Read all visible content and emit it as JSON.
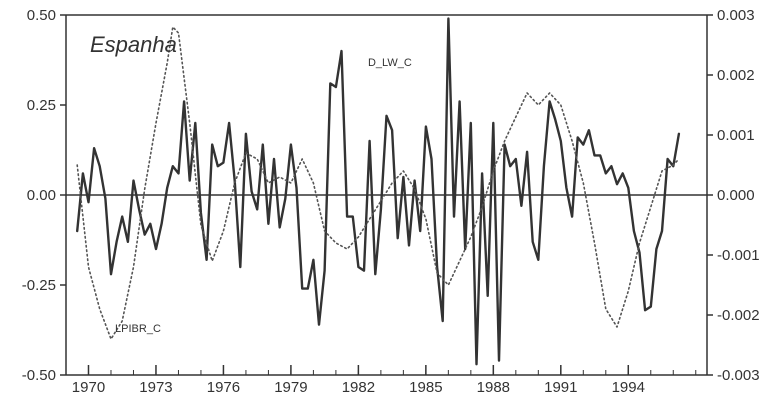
{
  "chart_data": {
    "type": "line",
    "title": "Espanha",
    "xlim": [
      1969.0,
      1997.5
    ],
    "ylim_left": [
      -0.5,
      0.5
    ],
    "ylim_right": [
      -0.003,
      0.003
    ],
    "x_ticks": [
      1970,
      1973,
      1976,
      1979,
      1982,
      1985,
      1988,
      1991,
      1994
    ],
    "x_tick_labels": [
      "1970",
      "1973",
      "1976",
      "1979",
      "1982",
      "1985",
      "1988",
      "1991",
      "1994"
    ],
    "y_left_ticks": [
      0.5,
      0.25,
      0.0,
      -0.25,
      -0.5
    ],
    "y_left_tick_labels": [
      "0.50",
      "0.25",
      "0.00",
      "-0.25",
      "-0.50"
    ],
    "y_right_ticks": [
      0.003,
      0.002,
      0.001,
      0.0,
      -0.001,
      -0.002,
      -0.003
    ],
    "y_right_tick_labels": [
      "0.003",
      "0.002",
      "0.001",
      "0.000",
      "-0.001",
      "-0.002",
      "-0.003"
    ],
    "zero_line": true,
    "grid": false,
    "series": [
      {
        "name": "D_LW_C",
        "axis": "left",
        "style": "solid",
        "color": "#333333",
        "x": [
          1969.5,
          1969.75,
          1970.0,
          1970.25,
          1970.5,
          1970.75,
          1971.0,
          1971.25,
          1971.5,
          1971.75,
          1972.0,
          1972.25,
          1972.5,
          1972.75,
          1973.0,
          1973.25,
          1973.5,
          1973.75,
          1974.0,
          1974.25,
          1974.5,
          1974.75,
          1975.0,
          1975.25,
          1975.5,
          1975.75,
          1976.0,
          1976.25,
          1976.5,
          1976.75,
          1977.0,
          1977.25,
          1977.5,
          1977.75,
          1978.0,
          1978.25,
          1978.5,
          1978.75,
          1979.0,
          1979.25,
          1979.5,
          1979.75,
          1980.0,
          1980.25,
          1980.5,
          1980.75,
          1981.0,
          1981.25,
          1981.5,
          1981.75,
          1982.0,
          1982.25,
          1982.5,
          1982.75,
          1983.0,
          1983.25,
          1983.5,
          1983.75,
          1984.0,
          1984.25,
          1984.5,
          1984.75,
          1985.0,
          1985.25,
          1985.5,
          1985.75,
          1986.0,
          1986.25,
          1986.5,
          1986.75,
          1987.0,
          1987.25,
          1987.5,
          1987.75,
          1988.0,
          1988.25,
          1988.5,
          1988.75,
          1989.0,
          1989.25,
          1989.5,
          1989.75,
          1990.0,
          1990.25,
          1990.5,
          1990.75,
          1991.0,
          1991.25,
          1991.5,
          1991.75,
          1992.0,
          1992.25,
          1992.5,
          1992.75,
          1993.0,
          1993.25,
          1993.5,
          1993.75,
          1994.0,
          1994.25,
          1994.5,
          1994.75,
          1995.0,
          1995.25,
          1995.5,
          1995.75,
          1996.0,
          1996.25
        ],
        "y": [
          -0.1,
          0.06,
          -0.02,
          0.13,
          0.08,
          -0.01,
          -0.22,
          -0.13,
          -0.06,
          -0.13,
          0.04,
          -0.04,
          -0.11,
          -0.08,
          -0.15,
          -0.08,
          0.02,
          0.08,
          0.06,
          0.26,
          0.04,
          0.2,
          -0.05,
          -0.18,
          0.14,
          0.08,
          0.09,
          0.2,
          0.04,
          -0.2,
          0.17,
          0.01,
          -0.04,
          0.14,
          -0.08,
          0.1,
          -0.09,
          -0.01,
          0.14,
          0.02,
          -0.26,
          -0.26,
          -0.18,
          -0.36,
          -0.21,
          0.31,
          0.3,
          0.4,
          -0.06,
          -0.06,
          -0.2,
          -0.21,
          0.15,
          -0.22,
          -0.04,
          0.22,
          0.18,
          -0.12,
          0.05,
          -0.14,
          0.04,
          -0.1,
          0.19,
          0.1,
          -0.2,
          -0.35,
          0.49,
          -0.06,
          0.26,
          -0.15,
          0.2,
          -0.47,
          0.06,
          -0.28,
          0.2,
          -0.46,
          0.14,
          0.08,
          0.1,
          -0.03,
          0.12,
          -0.13,
          -0.18,
          0.08,
          0.26,
          0.21,
          0.15,
          0.02,
          -0.06,
          0.16,
          0.14,
          0.18,
          0.11,
          0.11,
          0.06,
          0.08,
          0.03,
          0.06,
          0.02,
          -0.1,
          -0.16,
          -0.32,
          -0.31,
          -0.15,
          -0.1,
          0.1,
          0.08,
          0.17
        ]
      },
      {
        "name": "LPIBR_C",
        "axis": "right",
        "style": "dotted",
        "color": "#555555",
        "x": [
          1969.5,
          1970.0,
          1970.5,
          1971.0,
          1971.5,
          1972.0,
          1972.5,
          1973.0,
          1973.5,
          1973.75,
          1974.0,
          1974.5,
          1975.0,
          1975.5,
          1976.0,
          1976.5,
          1977.0,
          1977.5,
          1978.0,
          1978.5,
          1979.0,
          1979.5,
          1980.0,
          1980.5,
          1981.0,
          1981.5,
          1982.0,
          1982.5,
          1983.0,
          1983.5,
          1984.0,
          1984.5,
          1985.0,
          1985.5,
          1986.0,
          1986.5,
          1987.0,
          1987.5,
          1988.0,
          1988.5,
          1989.0,
          1989.5,
          1990.0,
          1990.5,
          1991.0,
          1991.5,
          1992.0,
          1992.5,
          1993.0,
          1993.5,
          1994.0,
          1994.5,
          1995.0,
          1995.5,
          1996.0,
          1996.25
        ],
        "y": [
          0.0005,
          -0.0012,
          -0.0019,
          -0.0024,
          -0.0021,
          -0.0012,
          0.0001,
          0.0012,
          0.0022,
          0.0028,
          0.0027,
          0.0012,
          -0.0005,
          -0.0011,
          -0.0006,
          0.0002,
          0.0007,
          0.0006,
          0.0002,
          0.0003,
          0.0002,
          0.0006,
          0.0002,
          -0.0006,
          -0.0008,
          -0.0009,
          -0.0007,
          -0.0004,
          -0.0001,
          0.0002,
          0.0004,
          0.0001,
          -0.0004,
          -0.0013,
          -0.0015,
          -0.0011,
          -0.0007,
          -0.0002,
          0.0004,
          0.0009,
          0.0013,
          0.0017,
          0.0015,
          0.0017,
          0.0015,
          0.0009,
          0.0002,
          -0.0008,
          -0.0019,
          -0.0022,
          -0.0016,
          -0.0008,
          -0.0002,
          0.0004,
          0.0005,
          0.0006
        ]
      }
    ],
    "annotations": [
      {
        "text": "D_LW_C",
        "series": "D_LW_C",
        "x": 1983.4,
        "y_left": 0.37
      },
      {
        "text": "LPIBR_C",
        "series": "LPIBR_C",
        "x": 1972.2,
        "y_left": -0.37
      }
    ]
  }
}
